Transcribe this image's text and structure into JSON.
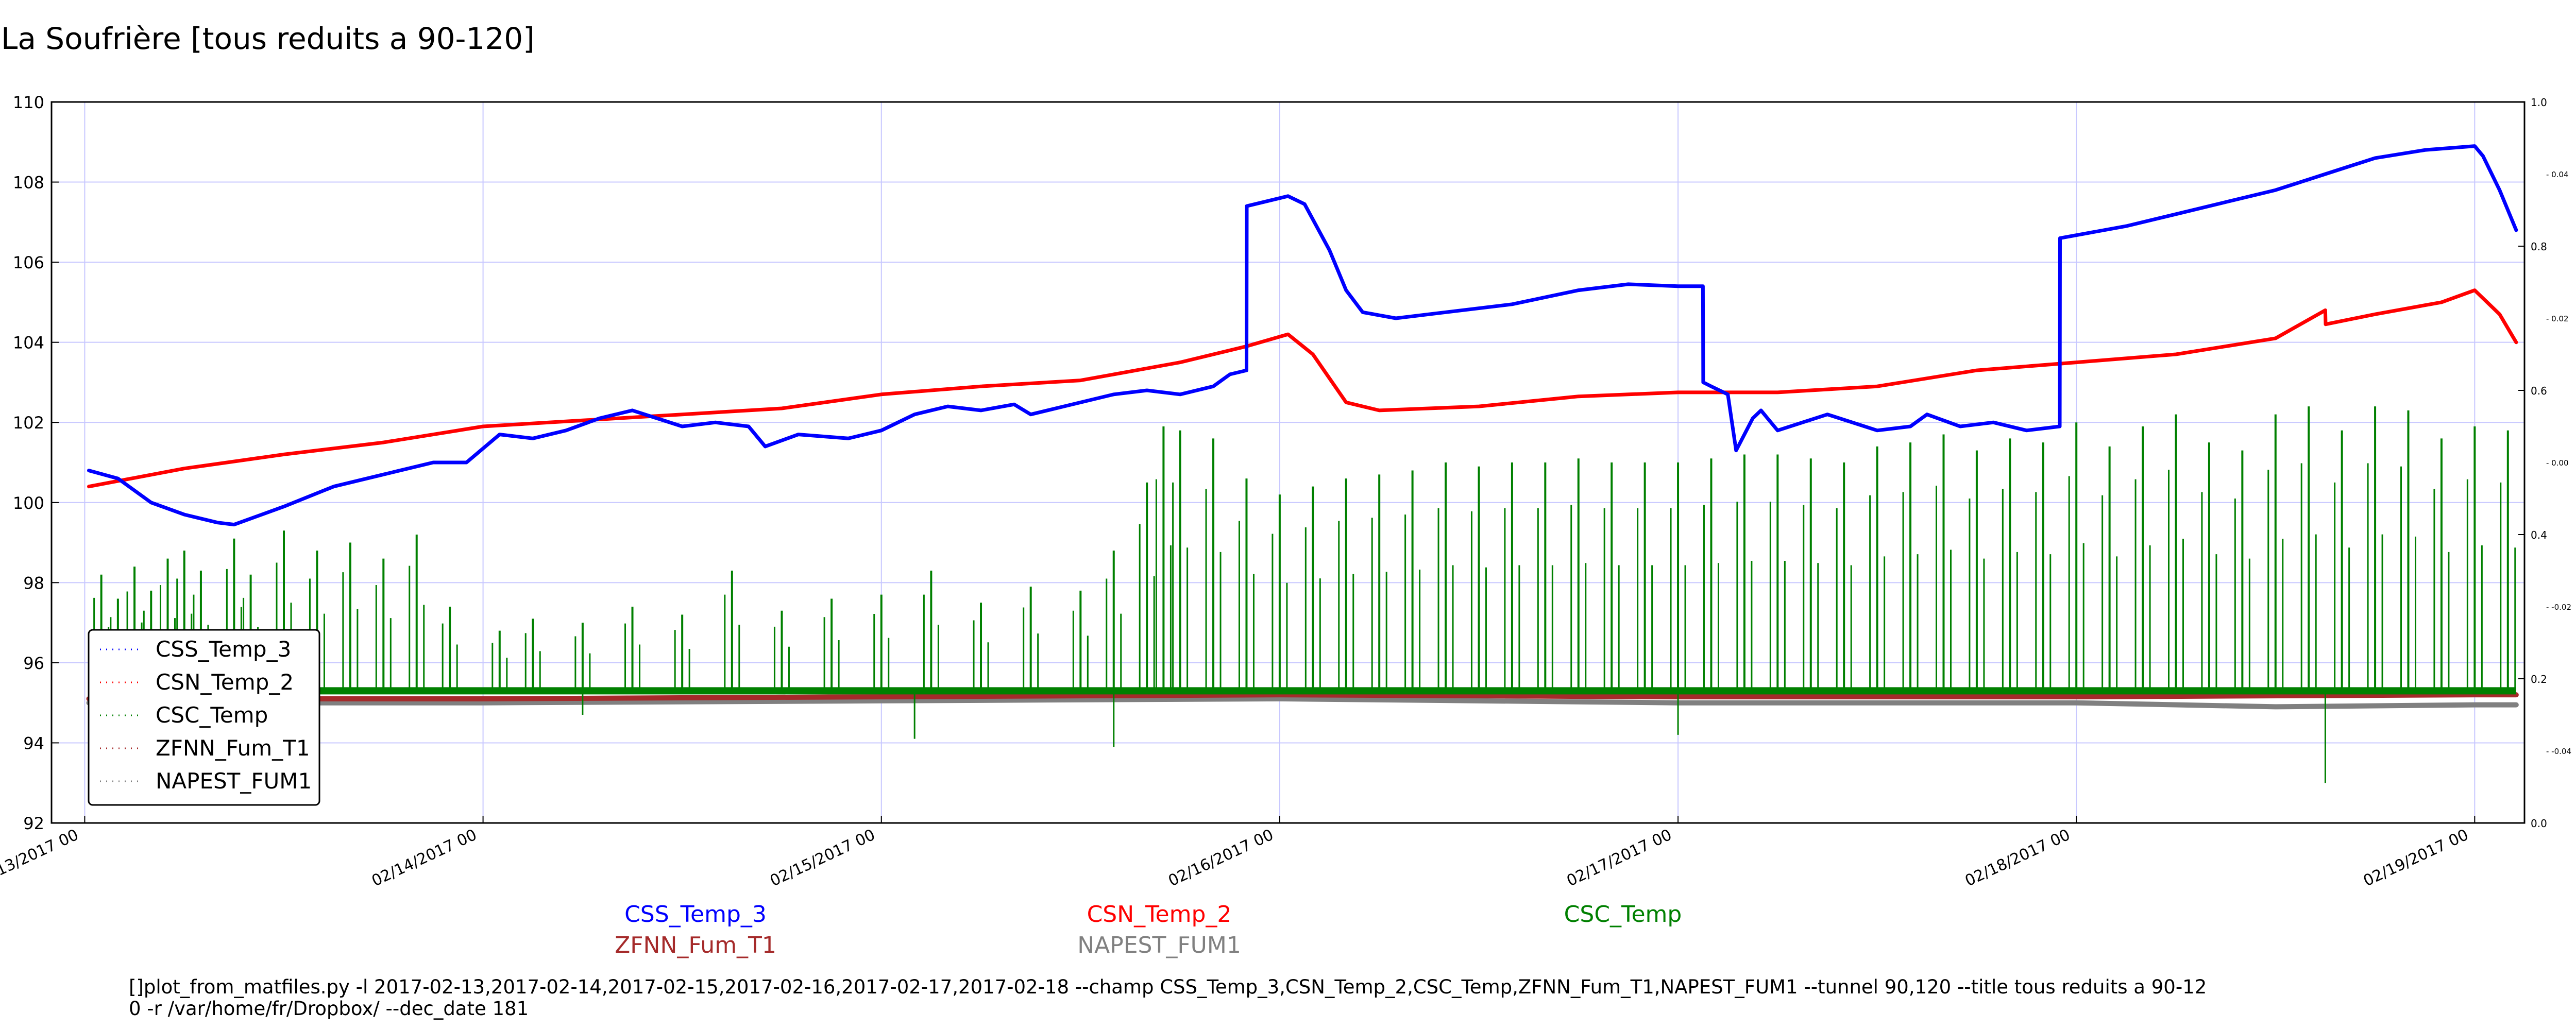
{
  "chart_data": {
    "type": "line",
    "title": "La Soufrière [tous reduits a 90-120]",
    "xlabel": "",
    "ylabel": "",
    "ylim": [
      92,
      110
    ],
    "y_ticks": [
      92,
      94,
      96,
      98,
      100,
      102,
      104,
      106,
      108,
      110
    ],
    "xlim": [
      "2017-02-12T22:00",
      "2017-02-19T03:00"
    ],
    "x_ticks": [
      {
        "date": "2017-02-13T00:00",
        "label": "02/13/2017 00"
      },
      {
        "date": "2017-02-14T00:00",
        "label": "02/14/2017 00"
      },
      {
        "date": "2017-02-15T00:00",
        "label": "02/15/2017 00"
      },
      {
        "date": "2017-02-16T00:00",
        "label": "02/16/2017 00"
      },
      {
        "date": "2017-02-17T00:00",
        "label": "02/17/2017 00"
      },
      {
        "date": "2017-02-18T00:00",
        "label": "02/18/2017 00"
      },
      {
        "date": "2017-02-19T00:00",
        "label": "02/19/2017 00"
      }
    ],
    "right_axis": {
      "ylim": [
        0.0,
        1.0
      ],
      "ticks": [
        "0.0",
        "0.2",
        "0.4",
        "0.6",
        "0.8",
        "1.0"
      ],
      "inner_ylim": [
        -0.05,
        0.05
      ],
      "inner_ticks": [
        "-0.04",
        "-0.02",
        "0.00",
        "0.02",
        "0.04"
      ]
    },
    "grid": true,
    "legend": {
      "placement": "lower-left"
    },
    "series": [
      {
        "name": "CSS_Temp_3",
        "color": "#0000ff",
        "points": [
          [
            "2017-02-13T00:15",
            100.8
          ],
          [
            "2017-02-13T02:00",
            100.6
          ],
          [
            "2017-02-13T04:00",
            100.0
          ],
          [
            "2017-02-13T06:00",
            99.7
          ],
          [
            "2017-02-13T08:00",
            99.5
          ],
          [
            "2017-02-13T09:00",
            99.45
          ],
          [
            "2017-02-13T12:00",
            99.9
          ],
          [
            "2017-02-13T15:00",
            100.4
          ],
          [
            "2017-02-13T18:00",
            100.7
          ],
          [
            "2017-02-13T21:00",
            101.0
          ],
          [
            "2017-02-13T23:00",
            101.0
          ],
          [
            "2017-02-14T01:00",
            101.7
          ],
          [
            "2017-02-14T03:00",
            101.6
          ],
          [
            "2017-02-14T05:00",
            101.8
          ],
          [
            "2017-02-14T07:00",
            102.1
          ],
          [
            "2017-02-14T09:00",
            102.3
          ],
          [
            "2017-02-14T12:00",
            101.9
          ],
          [
            "2017-02-14T14:00",
            102.0
          ],
          [
            "2017-02-14T16:00",
            101.9
          ],
          [
            "2017-02-14T17:00",
            101.4
          ],
          [
            "2017-02-14T19:00",
            101.7
          ],
          [
            "2017-02-14T22:00",
            101.6
          ],
          [
            "2017-02-15T00:00",
            101.8
          ],
          [
            "2017-02-15T02:00",
            102.2
          ],
          [
            "2017-02-15T04:00",
            102.4
          ],
          [
            "2017-02-15T06:00",
            102.3
          ],
          [
            "2017-02-15T08:00",
            102.45
          ],
          [
            "2017-02-15T09:00",
            102.2
          ],
          [
            "2017-02-15T11:00",
            102.4
          ],
          [
            "2017-02-15T14:00",
            102.7
          ],
          [
            "2017-02-15T16:00",
            102.8
          ],
          [
            "2017-02-15T18:00",
            102.7
          ],
          [
            "2017-02-15T20:00",
            102.9
          ],
          [
            "2017-02-15T21:00",
            103.2
          ],
          [
            "2017-02-15T22:00",
            103.3
          ],
          [
            "2017-02-15T22:01",
            107.4
          ],
          [
            "2017-02-16T00:30",
            107.65
          ],
          [
            "2017-02-16T01:30",
            107.45
          ],
          [
            "2017-02-16T03:00",
            106.3
          ],
          [
            "2017-02-16T04:00",
            105.3
          ],
          [
            "2017-02-16T05:00",
            104.75
          ],
          [
            "2017-02-16T07:00",
            104.6
          ],
          [
            "2017-02-16T10:00",
            104.75
          ],
          [
            "2017-02-16T14:00",
            104.95
          ],
          [
            "2017-02-16T18:00",
            105.3
          ],
          [
            "2017-02-16T21:00",
            105.45
          ],
          [
            "2017-02-17T00:00",
            105.4
          ],
          [
            "2017-02-17T01:30",
            105.4
          ],
          [
            "2017-02-17T01:31",
            103.0
          ],
          [
            "2017-02-17T02:00",
            102.9
          ],
          [
            "2017-02-17T03:00",
            102.7
          ],
          [
            "2017-02-17T03:30",
            101.3
          ],
          [
            "2017-02-17T04:30",
            102.1
          ],
          [
            "2017-02-17T05:00",
            102.3
          ],
          [
            "2017-02-17T06:00",
            101.8
          ],
          [
            "2017-02-17T09:00",
            102.2
          ],
          [
            "2017-02-17T12:00",
            101.8
          ],
          [
            "2017-02-17T14:00",
            101.9
          ],
          [
            "2017-02-17T15:00",
            102.2
          ],
          [
            "2017-02-17T17:00",
            101.9
          ],
          [
            "2017-02-17T19:00",
            102.0
          ],
          [
            "2017-02-17T21:00",
            101.8
          ],
          [
            "2017-02-17T23:00",
            101.9
          ],
          [
            "2017-02-17T23:01",
            106.6
          ],
          [
            "2017-02-18T03:00",
            106.9
          ],
          [
            "2017-02-18T06:00",
            107.2
          ],
          [
            "2017-02-18T09:00",
            107.5
          ],
          [
            "2017-02-18T12:00",
            107.8
          ],
          [
            "2017-02-18T15:00",
            108.2
          ],
          [
            "2017-02-18T18:00",
            108.6
          ],
          [
            "2017-02-18T21:00",
            108.8
          ],
          [
            "2017-02-19T00:00",
            108.9
          ],
          [
            "2017-02-19T00:30",
            108.65
          ],
          [
            "2017-02-19T01:30",
            107.8
          ],
          [
            "2017-02-19T02:30",
            106.8
          ]
        ]
      },
      {
        "name": "CSN_Temp_2",
        "color": "#ff0000",
        "points": [
          [
            "2017-02-13T00:15",
            100.4
          ],
          [
            "2017-02-13T06:00",
            100.85
          ],
          [
            "2017-02-13T12:00",
            101.2
          ],
          [
            "2017-02-13T18:00",
            101.5
          ],
          [
            "2017-02-14T00:00",
            101.9
          ],
          [
            "2017-02-14T06:00",
            102.05
          ],
          [
            "2017-02-14T12:00",
            102.2
          ],
          [
            "2017-02-14T18:00",
            102.35
          ],
          [
            "2017-02-15T00:00",
            102.7
          ],
          [
            "2017-02-15T06:00",
            102.9
          ],
          [
            "2017-02-15T12:00",
            103.05
          ],
          [
            "2017-02-15T18:00",
            103.5
          ],
          [
            "2017-02-15T22:00",
            103.9
          ],
          [
            "2017-02-16T00:30",
            104.2
          ],
          [
            "2017-02-16T02:00",
            103.7
          ],
          [
            "2017-02-16T04:00",
            102.5
          ],
          [
            "2017-02-16T06:00",
            102.3
          ],
          [
            "2017-02-16T12:00",
            102.4
          ],
          [
            "2017-02-16T18:00",
            102.65
          ],
          [
            "2017-02-17T00:00",
            102.75
          ],
          [
            "2017-02-17T06:00",
            102.75
          ],
          [
            "2017-02-17T12:00",
            102.9
          ],
          [
            "2017-02-17T18:00",
            103.3
          ],
          [
            "2017-02-18T00:00",
            103.5
          ],
          [
            "2017-02-18T06:00",
            103.7
          ],
          [
            "2017-02-18T12:00",
            104.1
          ],
          [
            "2017-02-18T15:00",
            104.8
          ],
          [
            "2017-02-18T15:01",
            104.45
          ],
          [
            "2017-02-18T18:00",
            104.7
          ],
          [
            "2017-02-18T22:00",
            105.0
          ],
          [
            "2017-02-19T00:00",
            105.3
          ],
          [
            "2017-02-19T01:30",
            104.7
          ],
          [
            "2017-02-19T02:30",
            104.0
          ]
        ]
      },
      {
        "name": "CSC_Temp",
        "color": "#008000",
        "baseline": 95.3,
        "spikes": [
          [
            "2017-02-13T01:00",
            98.2
          ],
          [
            "2017-02-13T02:00",
            97.6
          ],
          [
            "2017-02-13T03:00",
            98.4
          ],
          [
            "2017-02-13T04:00",
            97.8
          ],
          [
            "2017-02-13T05:00",
            98.6
          ],
          [
            "2017-02-13T06:00",
            98.8
          ],
          [
            "2017-02-13T07:00",
            98.3
          ],
          [
            "2017-02-13T09:00",
            99.1
          ],
          [
            "2017-02-13T10:00",
            98.2
          ],
          [
            "2017-02-13T12:00",
            99.3
          ],
          [
            "2017-02-13T14:00",
            98.8
          ],
          [
            "2017-02-13T16:00",
            99.0
          ],
          [
            "2017-02-13T18:00",
            98.6
          ],
          [
            "2017-02-13T20:00",
            99.2
          ],
          [
            "2017-02-13T22:00",
            97.4
          ],
          [
            "2017-02-14T01:00",
            96.8
          ],
          [
            "2017-02-14T03:00",
            97.1
          ],
          [
            "2017-02-14T06:00",
            97.0
          ],
          [
            "2017-02-14T09:00",
            97.4
          ],
          [
            "2017-02-14T12:00",
            97.2
          ],
          [
            "2017-02-14T15:00",
            98.3
          ],
          [
            "2017-02-14T18:00",
            97.3
          ],
          [
            "2017-02-14T21:00",
            97.6
          ],
          [
            "2017-02-15T00:00",
            97.7
          ],
          [
            "2017-02-15T03:00",
            98.3
          ],
          [
            "2017-02-15T06:00",
            97.5
          ],
          [
            "2017-02-15T09:00",
            97.9
          ],
          [
            "2017-02-15T12:00",
            97.8
          ],
          [
            "2017-02-15T14:00",
            98.8
          ],
          [
            "2017-02-15T16:00",
            100.5
          ],
          [
            "2017-02-15T17:00",
            101.9
          ],
          [
            "2017-02-15T18:00",
            101.8
          ],
          [
            "2017-02-15T20:00",
            101.6
          ],
          [
            "2017-02-15T22:00",
            100.6
          ],
          [
            "2017-02-16T00:00",
            100.2
          ],
          [
            "2017-02-16T02:00",
            100.4
          ],
          [
            "2017-02-16T04:00",
            100.6
          ],
          [
            "2017-02-16T06:00",
            100.7
          ],
          [
            "2017-02-16T08:00",
            100.8
          ],
          [
            "2017-02-16T10:00",
            101.0
          ],
          [
            "2017-02-16T12:00",
            100.9
          ],
          [
            "2017-02-16T14:00",
            101.0
          ],
          [
            "2017-02-16T16:00",
            101.0
          ],
          [
            "2017-02-16T18:00",
            101.1
          ],
          [
            "2017-02-16T20:00",
            101.0
          ],
          [
            "2017-02-16T22:00",
            101.0
          ],
          [
            "2017-02-17T00:00",
            101.0
          ],
          [
            "2017-02-17T02:00",
            101.1
          ],
          [
            "2017-02-17T04:00",
            101.2
          ],
          [
            "2017-02-17T06:00",
            101.2
          ],
          [
            "2017-02-17T08:00",
            101.1
          ],
          [
            "2017-02-17T10:00",
            101.0
          ],
          [
            "2017-02-17T12:00",
            101.4
          ],
          [
            "2017-02-17T14:00",
            101.5
          ],
          [
            "2017-02-17T16:00",
            101.7
          ],
          [
            "2017-02-17T18:00",
            101.3
          ],
          [
            "2017-02-17T20:00",
            101.6
          ],
          [
            "2017-02-17T22:00",
            101.5
          ],
          [
            "2017-02-18T00:00",
            102.0
          ],
          [
            "2017-02-18T02:00",
            101.4
          ],
          [
            "2017-02-18T04:00",
            101.9
          ],
          [
            "2017-02-18T06:00",
            102.2
          ],
          [
            "2017-02-18T08:00",
            101.5
          ],
          [
            "2017-02-18T10:00",
            101.3
          ],
          [
            "2017-02-18T12:00",
            102.2
          ],
          [
            "2017-02-18T14:00",
            102.4
          ],
          [
            "2017-02-18T16:00",
            101.8
          ],
          [
            "2017-02-18T18:00",
            102.4
          ],
          [
            "2017-02-18T20:00",
            102.3
          ],
          [
            "2017-02-18T22:00",
            101.6
          ],
          [
            "2017-02-19T00:00",
            101.9
          ],
          [
            "2017-02-19T02:00",
            101.8
          ]
        ],
        "dips": [
          [
            "2017-02-14T06:00",
            94.7
          ],
          [
            "2017-02-15T02:00",
            94.1
          ],
          [
            "2017-02-15T14:00",
            93.9
          ],
          [
            "2017-02-17T00:00",
            94.2
          ],
          [
            "2017-02-18T15:00",
            93.0
          ]
        ]
      },
      {
        "name": "ZFNN_Fum_T1",
        "color": "#a52a2a",
        "points": [
          [
            "2017-02-13T00:15",
            95.1
          ],
          [
            "2017-02-14T00:00",
            95.1
          ],
          [
            "2017-02-15T00:00",
            95.15
          ],
          [
            "2017-02-16T00:00",
            95.2
          ],
          [
            "2017-02-17T00:00",
            95.15
          ],
          [
            "2017-02-18T00:00",
            95.15
          ],
          [
            "2017-02-19T00:00",
            95.2
          ],
          [
            "2017-02-19T02:30",
            95.2
          ]
        ]
      },
      {
        "name": "NAPEST_FUM1",
        "color": "#808080",
        "points": [
          [
            "2017-02-13T00:15",
            95.0
          ],
          [
            "2017-02-14T00:00",
            95.0
          ],
          [
            "2017-02-15T00:00",
            95.05
          ],
          [
            "2017-02-16T00:00",
            95.1
          ],
          [
            "2017-02-17T00:00",
            95.0
          ],
          [
            "2017-02-18T00:00",
            95.0
          ],
          [
            "2017-02-18T12:00",
            94.9
          ],
          [
            "2017-02-19T00:00",
            94.95
          ],
          [
            "2017-02-19T02:30",
            94.95
          ]
        ]
      }
    ]
  },
  "bottom_labels": [
    {
      "text": "CSS_Temp_3",
      "color": "#0000ff"
    },
    {
      "text": "ZFNN_Fum_T1",
      "color": "#a52a2a"
    },
    {
      "text": "CSN_Temp_2",
      "color": "#ff0000"
    },
    {
      "text": "NAPEST_FUM1",
      "color": "#808080"
    },
    {
      "text": "CSC_Temp",
      "color": "#008000"
    }
  ],
  "command_line": "[]plot_from_matfiles.py -l 2017-02-13,2017-02-14,2017-02-15,2017-02-16,2017-02-17,2017-02-18 --champ CSS_Temp_3,CSN_Temp_2,CSC_Temp,ZFNN_Fum_T1,NAPEST_FUM1 --tunnel 90,120 --title tous reduits a 90-12\n0 -r /var/home/fr/Dropbox/ --dec_date 181"
}
